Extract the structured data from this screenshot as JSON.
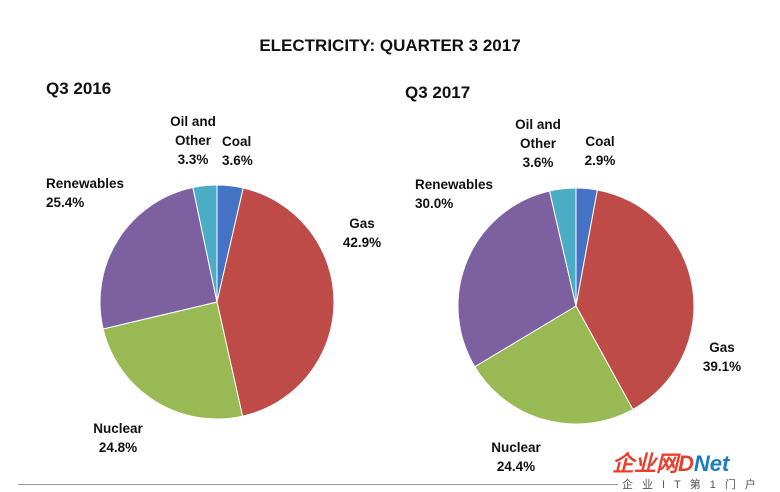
{
  "title": "ELECTRICITY: QUARTER 3 2017",
  "chart_data": [
    {
      "type": "pie",
      "title": "Q3 2016",
      "slices": [
        {
          "name": "Coal",
          "value": 3.6,
          "label": "3.6%",
          "color": "#4472c4"
        },
        {
          "name": "Gas",
          "value": 42.9,
          "label": "42.9%",
          "color": "#be4b48"
        },
        {
          "name": "Nuclear",
          "value": 24.8,
          "label": "24.8%",
          "color": "#98b954"
        },
        {
          "name": "Renewables",
          "value": 25.4,
          "label": "25.4%",
          "color": "#7d60a0"
        },
        {
          "name": "Oil and Other",
          "value": 3.3,
          "label": "3.3%",
          "color": "#4bacc6"
        }
      ]
    },
    {
      "type": "pie",
      "title": "Q3 2017",
      "slices": [
        {
          "name": "Coal",
          "value": 2.9,
          "label": "2.9%",
          "color": "#4472c4"
        },
        {
          "name": "Gas",
          "value": 39.1,
          "label": "39.1%",
          "color": "#be4b48"
        },
        {
          "name": "Nuclear",
          "value": 24.4,
          "label": "24.4%",
          "color": "#98b954"
        },
        {
          "name": "Renewables",
          "value": 30.0,
          "label": "30.0%",
          "color": "#7d60a0"
        },
        {
          "name": "Oil and Other",
          "value": 3.6,
          "label": "3.6%",
          "color": "#4bacc6"
        }
      ]
    }
  ],
  "watermark": {
    "cn": "企业网",
    "d": "D",
    "net": "Net",
    "sub": "企业IT第1门户"
  }
}
